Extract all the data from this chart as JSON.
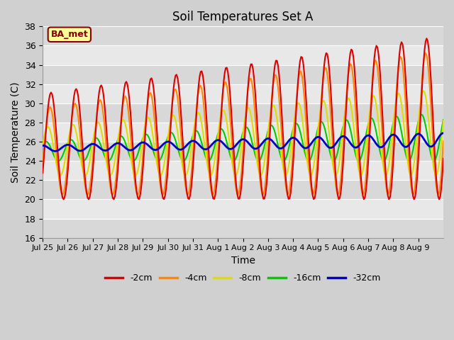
{
  "title": "Soil Temperatures Set A",
  "xlabel": "Time",
  "ylabel": "Soil Temperature (C)",
  "ylim": [
    16,
    38
  ],
  "legend_labels": [
    "-2cm",
    "-4cm",
    "-8cm",
    "-16cm",
    "-32cm"
  ],
  "legend_colors": [
    "#dd0000",
    "#ff8800",
    "#dddd00",
    "#00cc00",
    "#0000cc"
  ],
  "line_widths": [
    1.5,
    1.5,
    1.5,
    1.5,
    2.0
  ],
  "annotation_text": "BA_met",
  "annotation_color": "#880000",
  "annotation_bg": "#ffff99",
  "xtick_labels": [
    "Jul 25",
    "Jul 26",
    "Jul 27",
    "Jul 28",
    "Jul 29",
    "Jul 30",
    "Jul 31",
    "Aug 1",
    "Aug 2",
    "Aug 3",
    "Aug 4",
    "Aug 5",
    "Aug 6",
    "Aug 7",
    "Aug 8",
    "Aug 9"
  ],
  "ytick_values": [
    16,
    18,
    20,
    22,
    24,
    26,
    28,
    30,
    32,
    34,
    36,
    38
  ],
  "num_days": 16,
  "band_colors": [
    "#d8d8d8",
    "#e8e8e8"
  ]
}
